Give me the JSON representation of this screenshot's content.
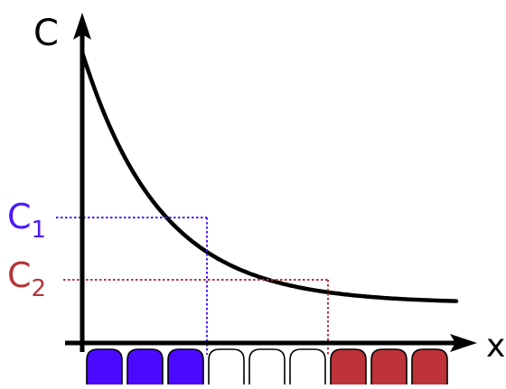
{
  "axes": {
    "y_label": "C",
    "x_label": "x"
  },
  "levels": [
    {
      "letter": "C",
      "subscript": "1",
      "color": "#4b1aff"
    },
    {
      "letter": "C",
      "subscript": "2",
      "color": "#b2353a"
    }
  ],
  "curve": {
    "type": "exponential decay",
    "color": "#000000"
  },
  "cells": [
    {
      "fill": "#4b0aff"
    },
    {
      "fill": "#4b0aff"
    },
    {
      "fill": "#4b0aff"
    },
    {
      "fill": "#ffffff"
    },
    {
      "fill": "#ffffff"
    },
    {
      "fill": "#ffffff"
    },
    {
      "fill": "#bd3338"
    },
    {
      "fill": "#bd3338"
    },
    {
      "fill": "#bd3338"
    }
  ]
}
